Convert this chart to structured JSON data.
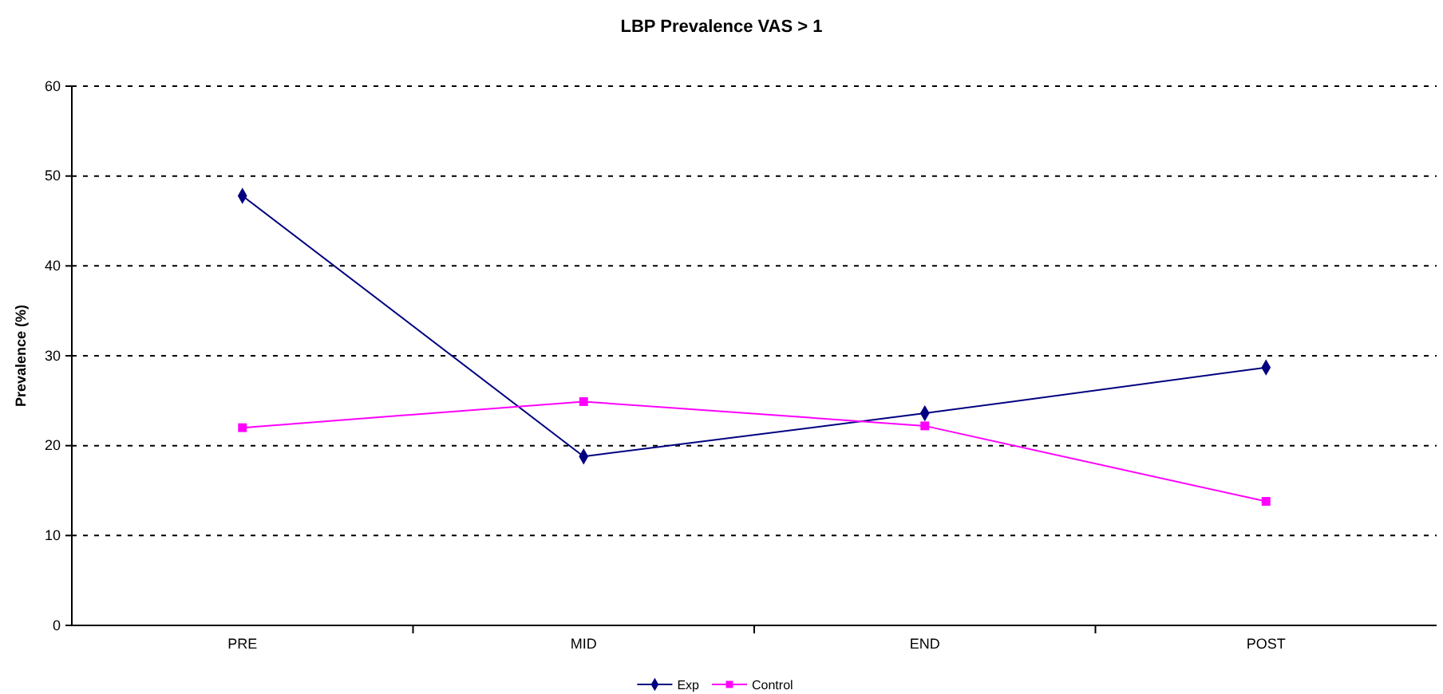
{
  "chart_data": {
    "type": "line",
    "title": "LBP Prevalence VAS > 1",
    "ylabel": "Prevalence (%)",
    "categories": [
      "PRE",
      "MID",
      "END",
      "POST"
    ],
    "series": [
      {
        "name": "Exp",
        "color": "#000080",
        "values": [
          47.8,
          18.8,
          23.6,
          28.7
        ],
        "marker": "diamond"
      },
      {
        "name": "Control",
        "color": "#ff00ff",
        "values": [
          22,
          24.9,
          22.2,
          13.8
        ],
        "marker": "square"
      }
    ],
    "ylim": [
      0,
      60
    ],
    "yticks": [
      0,
      10,
      20,
      30,
      40,
      50,
      60
    ],
    "grid": "y",
    "legend": "bottom",
    "line_style": "solid"
  }
}
